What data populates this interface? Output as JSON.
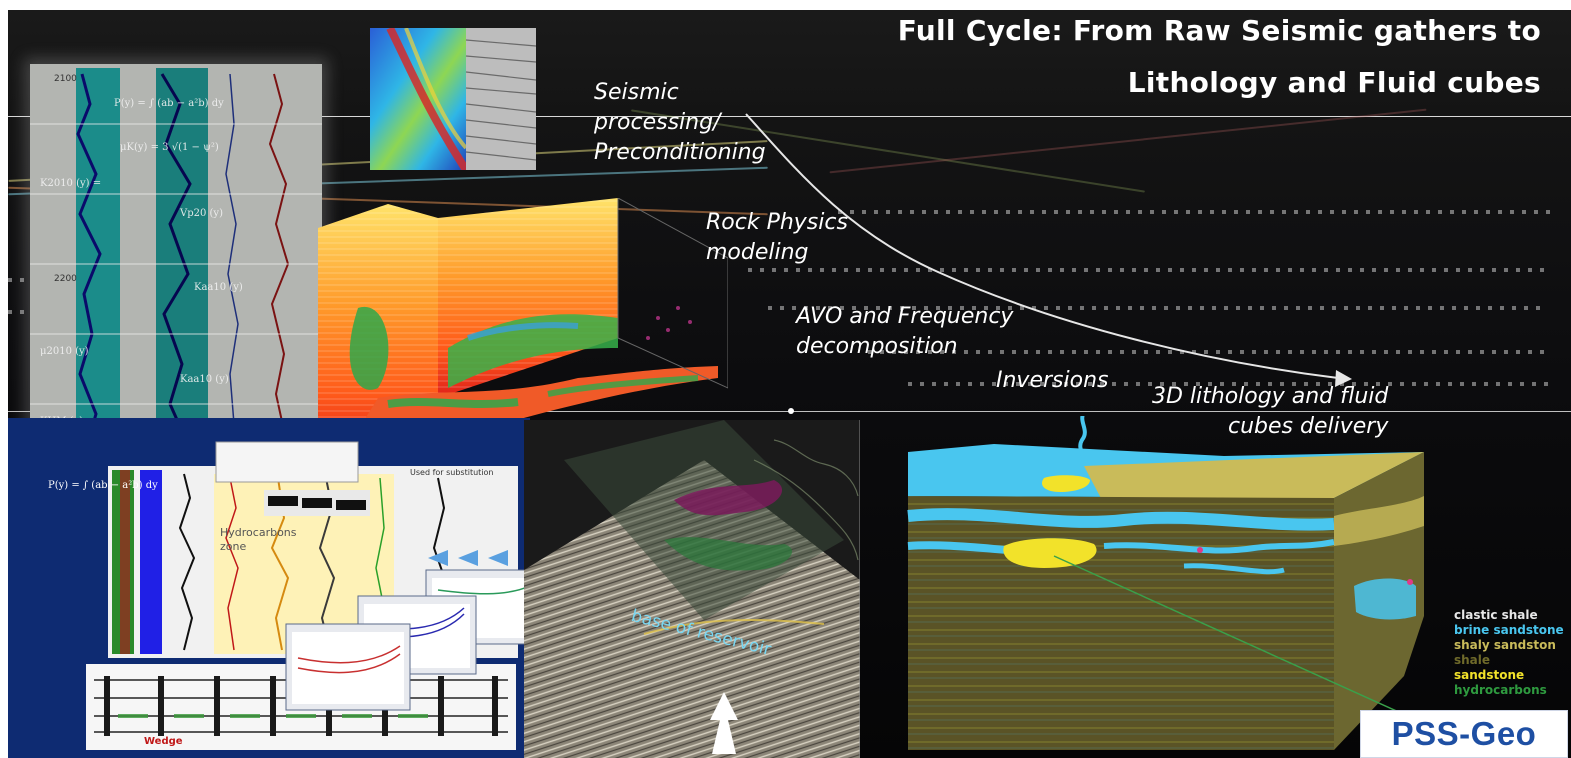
{
  "title": {
    "line1": "Full Cycle: From Raw Seismic gathers to",
    "line2": "Lithology and Fluid cubes"
  },
  "workflow": {
    "steps": [
      {
        "lines": [
          "Seismic",
          "processing/",
          "Preconditioning"
        ]
      },
      {
        "lines": [
          "Rock Physics",
          "modeling"
        ]
      },
      {
        "lines": [
          "AVO and Frequency",
          "decomposition"
        ]
      },
      {
        "lines": [
          "Inversions"
        ]
      },
      {
        "lines": [
          "3D lithology and fluid",
          "cubes delivery"
        ]
      }
    ]
  },
  "panels": {
    "well_log": {
      "depth_labels": [
        "2100",
        "2200"
      ]
    },
    "log_analysis": {
      "hydrocarbons_zone": "Hydrocarbons\nzone",
      "fluid_substitution": "Used for substitution",
      "wedge": "Wedge"
    },
    "seismic_section": {
      "annotation": "base of reservoir"
    }
  },
  "legend": {
    "items": [
      {
        "label": "clastic shale",
        "color": "#e8e8e8"
      },
      {
        "label": "brine sandstone",
        "color": "#49c6ef"
      },
      {
        "label": "shaly sandston",
        "color": "#c9bb5a"
      },
      {
        "label": "shale",
        "color": "#6f6a2a"
      },
      {
        "label": "sandstone",
        "color": "#f2e22a"
      },
      {
        "label": "hydrocarbons",
        "color": "#2e9a3f"
      }
    ]
  },
  "logo": {
    "text": "PSS-Geo"
  },
  "colors": {
    "title": "#ffffff",
    "step_text": "#ffffff",
    "logo_blue": "#1e4fa3",
    "arrow": "#e6e6e6"
  }
}
